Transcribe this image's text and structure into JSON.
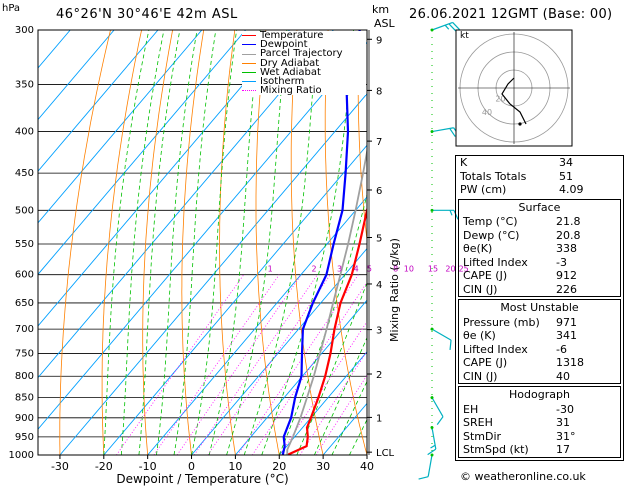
{
  "header": {
    "hpa_unit": "hPa",
    "location": "46°26'N  30°46'E  42m  ASL",
    "km_label": "km",
    "asl_label": "ASL",
    "datetime": "26.06.2021  12GMT  (Base: 00)"
  },
  "legend": [
    {
      "label": "Temperature",
      "color": "#ff0000",
      "dash": ""
    },
    {
      "label": "Dewpoint",
      "color": "#0000ff",
      "dash": ""
    },
    {
      "label": "Parcel Trajectory",
      "color": "#a0a0a0",
      "dash": ""
    },
    {
      "label": "Dry Adiabat",
      "color": "#ff8000",
      "dash": ""
    },
    {
      "label": "Wet Adiabat",
      "color": "#00c000",
      "dash": ""
    },
    {
      "label": "Isotherm",
      "color": "#00a0ff",
      "dash": ""
    },
    {
      "label": "Mixing Ratio",
      "color": "#ff00ff",
      "dash": "2,2"
    }
  ],
  "hodograph": {
    "label": "kt",
    "ring_labels": [
      "20",
      "40"
    ]
  },
  "indices": [
    {
      "k": "K",
      "v": "34"
    },
    {
      "k": "Totals Totals",
      "v": "51"
    },
    {
      "k": "PW (cm)",
      "v": "4.09"
    }
  ],
  "surface": {
    "title": "Surface",
    "rows": [
      {
        "k": "Temp (°C)",
        "v": "21.8"
      },
      {
        "k": "Dewp (°C)",
        "v": "20.8"
      },
      {
        "k": "θe(K)",
        "v": "338"
      },
      {
        "k": "Lifted Index",
        "v": "-3"
      },
      {
        "k": "CAPE (J)",
        "v": "912"
      },
      {
        "k": "CIN (J)",
        "v": "226"
      }
    ]
  },
  "most_unstable": {
    "title": "Most Unstable",
    "rows": [
      {
        "k": "Pressure (mb)",
        "v": "971"
      },
      {
        "k": "θe (K)",
        "v": "341"
      },
      {
        "k": "Lifted Index",
        "v": "-6"
      },
      {
        "k": "CAPE (J)",
        "v": "1318"
      },
      {
        "k": "CIN (J)",
        "v": "40"
      }
    ]
  },
  "hodograph_table": {
    "title": "Hodograph",
    "rows": [
      {
        "k": "EH",
        "v": "-30"
      },
      {
        "k": "SREH",
        "v": "31"
      },
      {
        "k": "StmDir",
        "v": "31°"
      },
      {
        "k": "StmSpd (kt)",
        "v": "17"
      }
    ]
  },
  "footer": {
    "copyright": "© weatheronline.co.uk"
  },
  "chart_data": {
    "type": "line",
    "xlabel": "Dewpoint / Temperature (°C)",
    "ylabel": "Mixing Ratio (g/kg)",
    "pressure_ticks": [
      300,
      350,
      400,
      450,
      500,
      550,
      600,
      650,
      700,
      750,
      800,
      850,
      900,
      950,
      1000
    ],
    "temp_ticks": [
      -30,
      -20,
      -10,
      0,
      10,
      20,
      30,
      40
    ],
    "xlim": [
      -35,
      40
    ],
    "ylim": [
      1000,
      300
    ],
    "km_ticks": [
      {
        "label": "9",
        "p": 308
      },
      {
        "label": "8",
        "p": 356
      },
      {
        "label": "7",
        "p": 411
      },
      {
        "label": "6",
        "p": 472
      },
      {
        "label": "5",
        "p": 540
      },
      {
        "label": "4",
        "p": 616
      },
      {
        "label": "3",
        "p": 701
      },
      {
        "label": "2",
        "p": 795
      },
      {
        "label": "1",
        "p": 899
      },
      {
        "label": "LCL",
        "p": 992
      }
    ],
    "mixing_ratio_labels": [
      {
        "label": "1",
        "t": -17.0
      },
      {
        "label": "2",
        "t": -7.0
      },
      {
        "label": "3",
        "t": -1.2
      },
      {
        "label": "4",
        "t": 2.6
      },
      {
        "label": "5",
        "t": 5.6
      },
      {
        "label": "8",
        "t": 11.6
      },
      {
        "label": "10",
        "t": 14.6
      },
      {
        "label": "15",
        "t": 20.1
      },
      {
        "label": "20",
        "t": 24.1
      },
      {
        "label": "25",
        "t": 27.1
      }
    ],
    "series": [
      {
        "name": "Temperature",
        "color": "#ff0000",
        "points": [
          [
            1000,
            21.8
          ],
          [
            975,
            24.5
          ],
          [
            950,
            23.0
          ],
          [
            925,
            21.0
          ],
          [
            900,
            20.0
          ],
          [
            850,
            17.8
          ],
          [
            800,
            15.2
          ],
          [
            750,
            12.0
          ],
          [
            700,
            8.2
          ],
          [
            650,
            4.5
          ],
          [
            600,
            1.6
          ],
          [
            550,
            -2.6
          ],
          [
            500,
            -7.4
          ],
          [
            450,
            -12.0
          ],
          [
            400,
            -18.5
          ],
          [
            350,
            -25.5
          ],
          [
            300,
            -34.0
          ]
        ]
      },
      {
        "name": "Dewpoint",
        "color": "#0000ff",
        "points": [
          [
            1000,
            20.8
          ],
          [
            975,
            19.5
          ],
          [
            950,
            17.5
          ],
          [
            900,
            15.5
          ],
          [
            850,
            12.5
          ],
          [
            800,
            9.8
          ],
          [
            750,
            5.5
          ],
          [
            700,
            1.0
          ],
          [
            650,
            -1.8
          ],
          [
            600,
            -4.2
          ],
          [
            550,
            -8.5
          ],
          [
            500,
            -13.0
          ],
          [
            450,
            -19.5
          ],
          [
            400,
            -27.0
          ],
          [
            350,
            -36.5
          ],
          [
            300,
            -44.0
          ]
        ]
      },
      {
        "name": "Parcel Trajectory",
        "color": "#a0a0a0",
        "points": [
          [
            1000,
            21.8
          ],
          [
            985,
            20.8
          ],
          [
            950,
            19.6
          ],
          [
            900,
            17.6
          ],
          [
            850,
            15.2
          ],
          [
            800,
            12.6
          ],
          [
            750,
            9.6
          ],
          [
            700,
            6.4
          ],
          [
            650,
            2.8
          ],
          [
            600,
            -1.0
          ],
          [
            550,
            -5.2
          ],
          [
            500,
            -10.0
          ],
          [
            450,
            -15.5
          ],
          [
            400,
            -21.8
          ],
          [
            350,
            -29.2
          ],
          [
            300,
            -38.0
          ]
        ]
      }
    ],
    "wind_barbs": [
      {
        "p": 1000,
        "dir": 10,
        "kt": 10
      },
      {
        "p": 925,
        "dir": 350,
        "kt": 15
      },
      {
        "p": 850,
        "dir": 330,
        "kt": 10
      },
      {
        "p": 700,
        "dir": 300,
        "kt": 10
      },
      {
        "p": 500,
        "dir": 270,
        "kt": 15
      },
      {
        "p": 400,
        "dir": 260,
        "kt": 20
      },
      {
        "p": 300,
        "dir": 250,
        "kt": 25
      }
    ],
    "hodograph_points": [
      [
        0,
        5
      ],
      [
        -3,
        2
      ],
      [
        -6,
        -3
      ],
      [
        -2,
        -8
      ],
      [
        3,
        -12
      ],
      [
        6,
        -18
      ]
    ]
  }
}
